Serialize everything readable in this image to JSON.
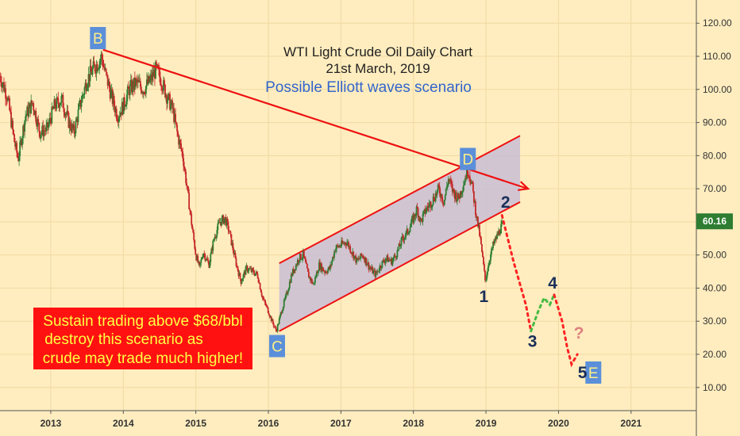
{
  "chart_data": {
    "type": "line",
    "title": "WTI Light Crude Oil Daily Chart",
    "subtitle": "21st March, 2019",
    "subtitle2": "Possible Elliott waves scenario",
    "xlim": [
      2012.3,
      2021.9
    ],
    "ylim": [
      3,
      127
    ],
    "x_ticks": [
      2013,
      2014,
      2015,
      2016,
      2017,
      2018,
      2019,
      2020,
      2021
    ],
    "x_tick_labels": [
      "2013",
      "2014",
      "2015",
      "2016",
      "2017",
      "2018",
      "2019",
      "2020",
      "2021"
    ],
    "y_ticks": [
      10,
      20,
      30,
      40,
      50,
      60,
      70,
      80,
      90,
      100,
      110,
      120
    ],
    "y_tick_labels": [
      "10.00",
      "20.00",
      "30.00",
      "40.00",
      "50.00",
      "60.00",
      "70.00",
      "80.00",
      "90.00",
      "100.00",
      "110.00",
      "120.00"
    ],
    "grid": true,
    "last_price": 60.16,
    "last_price_label": "60.16",
    "price_series": {
      "name": "",
      "points": [
        [
          2012.3,
          104
        ],
        [
          2012.4,
          98
        ],
        [
          2012.5,
          84
        ],
        [
          2012.55,
          79
        ],
        [
          2012.65,
          92
        ],
        [
          2012.75,
          96
        ],
        [
          2012.85,
          87
        ],
        [
          2012.95,
          88
        ],
        [
          2013.05,
          95
        ],
        [
          2013.15,
          97
        ],
        [
          2013.25,
          90
        ],
        [
          2013.32,
          87
        ],
        [
          2013.4,
          95
        ],
        [
          2013.5,
          103
        ],
        [
          2013.58,
          106
        ],
        [
          2013.65,
          108
        ],
        [
          2013.7,
          110
        ],
        [
          2013.75,
          105
        ],
        [
          2013.85,
          97
        ],
        [
          2013.92,
          92
        ],
        [
          2014.0,
          95
        ],
        [
          2014.08,
          100
        ],
        [
          2014.18,
          102
        ],
        [
          2014.28,
          100
        ],
        [
          2014.38,
          103
        ],
        [
          2014.45,
          106
        ],
        [
          2014.52,
          103
        ],
        [
          2014.6,
          98
        ],
        [
          2014.68,
          94
        ],
        [
          2014.75,
          86
        ],
        [
          2014.82,
          80
        ],
        [
          2014.88,
          70
        ],
        [
          2014.95,
          58
        ],
        [
          2015.0,
          50
        ],
        [
          2015.05,
          46
        ],
        [
          2015.1,
          51
        ],
        [
          2015.18,
          47
        ],
        [
          2015.25,
          55
        ],
        [
          2015.33,
          60
        ],
        [
          2015.4,
          61
        ],
        [
          2015.45,
          58
        ],
        [
          2015.55,
          48
        ],
        [
          2015.62,
          42
        ],
        [
          2015.7,
          46
        ],
        [
          2015.78,
          45
        ],
        [
          2015.85,
          44
        ],
        [
          2015.92,
          37
        ],
        [
          2016.0,
          33
        ],
        [
          2016.05,
          30
        ],
        [
          2016.11,
          27
        ],
        [
          2016.18,
          33
        ],
        [
          2016.25,
          38
        ],
        [
          2016.32,
          44
        ],
        [
          2016.42,
          49
        ],
        [
          2016.48,
          50
        ],
        [
          2016.55,
          44
        ],
        [
          2016.62,
          41
        ],
        [
          2016.7,
          47
        ],
        [
          2016.78,
          45
        ],
        [
          2016.85,
          46
        ],
        [
          2016.92,
          52
        ],
        [
          2017.0,
          53
        ],
        [
          2017.08,
          54
        ],
        [
          2017.15,
          51
        ],
        [
          2017.22,
          48
        ],
        [
          2017.3,
          50
        ],
        [
          2017.4,
          46
        ],
        [
          2017.48,
          44
        ],
        [
          2017.55,
          47
        ],
        [
          2017.62,
          49
        ],
        [
          2017.7,
          48
        ],
        [
          2017.78,
          51
        ],
        [
          2017.85,
          55
        ],
        [
          2017.92,
          57
        ],
        [
          2018.0,
          61
        ],
        [
          2018.05,
          64
        ],
        [
          2018.1,
          60
        ],
        [
          2018.18,
          64
        ],
        [
          2018.25,
          66
        ],
        [
          2018.35,
          70
        ],
        [
          2018.42,
          66
        ],
        [
          2018.48,
          73
        ],
        [
          2018.55,
          69
        ],
        [
          2018.62,
          67
        ],
        [
          2018.68,
          71
        ],
        [
          2018.75,
          76
        ],
        [
          2018.8,
          72
        ],
        [
          2018.86,
          63
        ],
        [
          2018.92,
          55
        ],
        [
          2018.97,
          46
        ],
        [
          2018.99,
          42
        ],
        [
          2019.04,
          48
        ],
        [
          2019.1,
          53
        ],
        [
          2019.16,
          56
        ],
        [
          2019.22,
          59
        ],
        [
          2019.22,
          60.16
        ]
      ]
    },
    "projection": {
      "wave2": [
        2019.22,
        62
      ],
      "wave3_points": [
        [
          2019.22,
          62
        ],
        [
          2019.38,
          48
        ],
        [
          2019.55,
          35
        ],
        [
          2019.62,
          27
        ]
      ],
      "wave4_points": [
        [
          2019.62,
          27
        ],
        [
          2019.72,
          33
        ],
        [
          2019.8,
          37
        ],
        [
          2019.88,
          35
        ],
        [
          2019.94,
          38
        ]
      ],
      "wave5_points": [
        [
          2019.94,
          38
        ],
        [
          2020.05,
          30
        ],
        [
          2020.12,
          22
        ],
        [
          2020.18,
          17
        ],
        [
          2020.26,
          20
        ]
      ]
    },
    "trendline_BD": [
      [
        2013.72,
        112
      ],
      [
        2019.58,
        70
      ]
    ],
    "channel_upper": [
      [
        2016.15,
        47.5
      ],
      [
        2019.47,
        86
      ]
    ],
    "channel_lower": [
      [
        2016.15,
        27
      ],
      [
        2019.47,
        66
      ]
    ],
    "wave_labels": [
      {
        "text": "B",
        "x": 2013.65,
        "y": 115.5,
        "boxed": true
      },
      {
        "text": "C",
        "x": 2016.12,
        "y": 22.5,
        "boxed": true
      },
      {
        "text": "D",
        "x": 2018.75,
        "y": 79,
        "boxed": true
      },
      {
        "text": "E",
        "x": 2020.48,
        "y": 14.5,
        "boxed": true
      },
      {
        "text": "1",
        "x": 2018.97,
        "y": 37.5,
        "boxed": false
      },
      {
        "text": "2",
        "x": 2019.27,
        "y": 66,
        "boxed": false
      },
      {
        "text": "3",
        "x": 2019.64,
        "y": 24,
        "boxed": false
      },
      {
        "text": "4",
        "x": 2019.92,
        "y": 41.5,
        "boxed": false
      },
      {
        "text": "5",
        "x": 2020.33,
        "y": 14.5,
        "boxed": false
      },
      {
        "text": "?",
        "x": 2020.28,
        "y": 26.5,
        "boxed": false
      }
    ],
    "annotation_lines": [
      "Sustain trading above $68/bbl",
      "destroy this scenario as",
      "crude may trade much higher!"
    ],
    "colors": {
      "background": "#ffedbf",
      "grid": "#f0d9a3",
      "bull": "#2e7d32",
      "bear": "#c62828",
      "trendline": "#ee1111",
      "channel_fill": "#c9bdd4",
      "label_box": "#5b8fd9",
      "label_box_text": "#ffee88",
      "wave_number": "#1a2f5a",
      "projection_red": "#ff2222",
      "projection_green": "#44bb44",
      "question": "#e08080",
      "annotation_bg": "#ff1111",
      "annotation_text": "#ffff44",
      "price_badge": "#2e7d32",
      "subtitle2": "#3366cc"
    }
  }
}
